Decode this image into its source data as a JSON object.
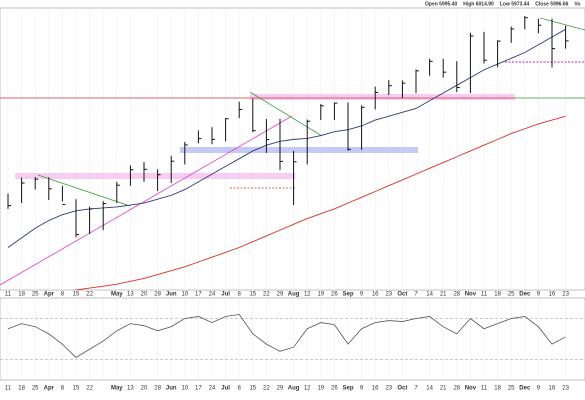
{
  "chart_data": {
    "type": "ohlc",
    "header": [
      "Open 5995.40",
      "High 6014.90",
      "Low 5973.44",
      "Close 5996.66",
      "Vo"
    ],
    "categories": [
      "11",
      "18",
      "25",
      "Apr",
      "8",
      "15",
      "22",
      null,
      "May",
      "13",
      "20",
      "28",
      "Jun",
      "10",
      "17",
      "24",
      "Jul",
      "8",
      "15",
      "22",
      "29",
      "Aug",
      "12",
      "19",
      "26",
      "Sep",
      "9",
      "16",
      "23",
      "Oct",
      "7",
      "14",
      "21",
      "28",
      "Nov",
      "11",
      "18",
      "25",
      "Dec",
      "9",
      "16",
      "23"
    ],
    "high": [
      5180,
      5262,
      5265,
      5264,
      5220,
      5150,
      5111,
      5140,
      5240,
      5325,
      5342,
      5305,
      5375,
      5447,
      5506,
      5523,
      5570,
      5655,
      5670,
      5565,
      5566,
      5400,
      5563,
      5643,
      5651,
      5651,
      5636,
      5733,
      5767,
      5765,
      5822,
      5878,
      5878,
      5865,
      6012,
      6017,
      5973,
      6044,
      6099,
      6085,
      6085,
      6049
    ],
    "low": [
      5100,
      5130,
      5200,
      5146,
      5139,
      4953,
      4970,
      4990,
      5130,
      5220,
      5240,
      5192,
      5234,
      5330,
      5440,
      5435,
      5450,
      5570,
      5497,
      5390,
      5302,
      5120,
      5330,
      5560,
      5560,
      5402,
      5406,
      5615,
      5690,
      5674,
      5700,
      5790,
      5780,
      5705,
      5700,
      5853,
      5835,
      5960,
      6030,
      6010,
      5832,
      5930
    ],
    "close": [
      5117,
      5234,
      5254,
      5204,
      5123,
      4967,
      5100,
      5128,
      5223,
      5303,
      5305,
      5277,
      5347,
      5431,
      5464,
      5460,
      5567,
      5615,
      5505,
      5459,
      5346,
      5344,
      5554,
      5634,
      5648,
      5408,
      5626,
      5703,
      5738,
      5751,
      5815,
      5864,
      5808,
      5729,
      5995,
      5870,
      5969,
      6032,
      6090,
      6051,
      5930,
      5970
    ],
    "color": "#111111",
    "ylim": [
      4680,
      6130
    ],
    "grid": true,
    "overlays": [
      {
        "color": "#2b3a7a",
        "values": [
          4900,
          4950,
          5000,
          5040,
          5070,
          5090,
          5100,
          5105,
          5110,
          5120,
          5130,
          5150,
          5170,
          5200,
          5240,
          5280,
          5320,
          5360,
          5400,
          5430,
          5450,
          5460,
          5465,
          5480,
          5500,
          5510,
          5530,
          5560,
          5580,
          5600,
          5620,
          5660,
          5700,
          5740,
          5780,
          5820,
          5850,
          5880,
          5910,
          5950,
          5990,
          6030
        ]
      },
      {
        "color": "#d9302c",
        "values": [
          4600,
          4620,
          4640,
          4655,
          4670,
          4680,
          4690,
          4700,
          4710,
          4725,
          4740,
          4760,
          4780,
          4800,
          4825,
          4850,
          4875,
          4900,
          4930,
          4960,
          4990,
          5020,
          5050,
          5075,
          5100,
          5130,
          5160,
          5190,
          5220,
          5250,
          5280,
          5310,
          5340,
          5370,
          5400,
          5430,
          5460,
          5490,
          5515,
          5540,
          5560,
          5580
        ]
      }
    ],
    "rsi": {
      "color": "#555555",
      "ylim": [
        10,
        90
      ],
      "levels": [
        70,
        30
      ],
      "values": [
        60,
        65,
        62,
        55,
        45,
        32,
        40,
        48,
        58,
        65,
        63,
        58,
        62,
        70,
        72,
        66,
        72,
        74,
        55,
        45,
        38,
        42,
        60,
        66,
        64,
        45,
        60,
        66,
        68,
        67,
        70,
        72,
        62,
        55,
        70,
        60,
        65,
        70,
        72,
        62,
        45,
        52
      ]
    }
  }
}
